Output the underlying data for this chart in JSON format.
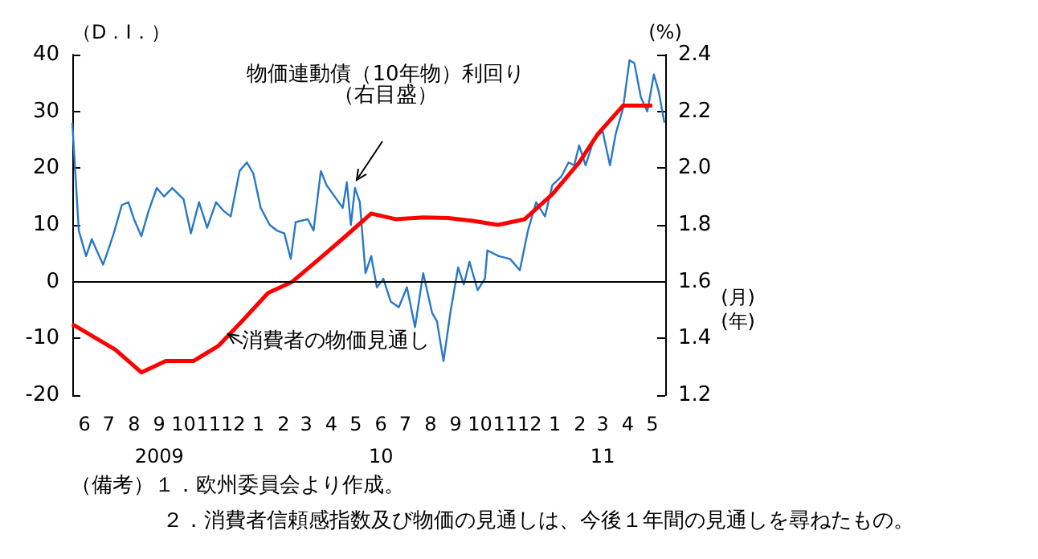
{
  "chart_data": {
    "type": "line",
    "ylabel": "（D．I．）",
    "y2label": "(%)",
    "xlabel": "(月)\n(年)",
    "xlim": [
      "2009-06-01",
      "2011-06-01"
    ],
    "xticks": [
      {
        "value": "2009-06-16",
        "label": "6"
      },
      {
        "value": "2009-07-16",
        "label": "7"
      },
      {
        "value": "2009-08-16",
        "label": "8"
      },
      {
        "value": "2009-09-16",
        "label": "9\n2009"
      },
      {
        "value": "2009-10-16",
        "label": "10"
      },
      {
        "value": "2009-11-16",
        "label": "11"
      },
      {
        "value": "2009-12-16",
        "label": "12"
      },
      {
        "value": "2010-01-16",
        "label": "1"
      },
      {
        "value": "2010-02-16",
        "label": "2"
      },
      {
        "value": "2010-03-16",
        "label": "3"
      },
      {
        "value": "2010-04-16",
        "label": "4"
      },
      {
        "value": "2010-05-16",
        "label": "5"
      },
      {
        "value": "2010-06-16",
        "label": "6\n10"
      },
      {
        "value": "2010-07-16",
        "label": "7"
      },
      {
        "value": "2010-08-16",
        "label": "8"
      },
      {
        "value": "2010-09-16",
        "label": "9"
      },
      {
        "value": "2010-10-16",
        "label": "10"
      },
      {
        "value": "2010-11-16",
        "label": "11"
      },
      {
        "value": "2010-12-16",
        "label": "12"
      },
      {
        "value": "2011-01-16",
        "label": "1"
      },
      {
        "value": "2011-02-16",
        "label": "2"
      },
      {
        "value": "2011-03-16",
        "label": "3\n11"
      },
      {
        "value": "2011-04-16",
        "label": "4"
      },
      {
        "value": "2011-05-16",
        "label": "5"
      }
    ],
    "ylim": [
      -20,
      40
    ],
    "yticks": [
      -20,
      -10,
      0,
      10,
      20,
      30,
      40
    ],
    "y2lim": [
      1.2,
      2.4
    ],
    "y2ticks": [
      1.2,
      1.4,
      1.6,
      1.8,
      {
        "value": 2,
        "label": "2.0"
      },
      2.2,
      2.4
    ],
    "grid": false,
    "legend": false,
    "marker": "none",
    "line_style": "solid",
    "ref_lines": [
      {
        "axis": "y",
        "value": 0,
        "color": "#000000"
      }
    ],
    "series": [
      {
        "name": "物価連動債（10年物）利回り（右目盛）",
        "axis": "y2",
        "color": "#2878c8",
        "x": [
          "2009-06-01",
          "2009-06-09",
          "2009-06-18",
          "2009-06-25",
          "2009-07-01",
          "2009-07-09",
          "2009-07-15",
          "2009-07-22",
          "2009-08-01",
          "2009-08-09",
          "2009-08-16",
          "2009-08-25",
          "2009-09-03",
          "2009-09-13",
          "2009-09-22",
          "2009-10-02",
          "2009-10-16",
          "2009-10-25",
          "2009-11-04",
          "2009-11-14",
          "2009-11-25",
          "2009-12-04",
          "2009-12-13",
          "2009-12-24",
          "2010-01-02",
          "2010-01-10",
          "2010-01-19",
          "2010-01-30",
          "2010-02-08",
          "2010-02-17",
          "2010-02-25",
          "2010-03-03",
          "2010-03-18",
          "2010-03-25",
          "2010-04-03",
          "2010-04-10",
          "2010-04-20",
          "2010-04-30",
          "2010-05-05",
          "2010-05-10",
          "2010-05-15",
          "2010-05-21",
          "2010-05-28",
          "2010-06-04",
          "2010-06-11",
          "2010-06-19",
          "2010-06-28",
          "2010-07-08",
          "2010-07-18",
          "2010-07-28",
          "2010-08-07",
          "2010-08-18",
          "2010-08-24",
          "2010-09-01",
          "2010-09-10",
          "2010-09-19",
          "2010-09-26",
          "2010-10-03",
          "2010-10-13",
          "2010-10-22",
          "2010-10-25",
          "2010-11-08",
          "2010-11-22",
          "2010-12-04",
          "2010-12-14",
          "2010-12-24",
          "2011-01-04",
          "2011-01-13",
          "2011-01-24",
          "2011-02-02",
          "2011-02-09",
          "2011-02-15",
          "2011-02-23",
          "2011-03-05",
          "2011-03-16",
          "2011-03-25",
          "2011-04-01",
          "2011-04-10",
          "2011-04-18",
          "2011-04-24",
          "2011-05-02",
          "2011-05-10",
          "2011-05-18",
          "2011-05-24",
          "2011-05-31"
        ],
        "values": [
          2.16,
          1.78,
          1.69,
          1.75,
          1.71,
          1.66,
          1.71,
          1.77,
          1.87,
          1.88,
          1.82,
          1.76,
          1.85,
          1.93,
          1.9,
          1.93,
          1.89,
          1.77,
          1.88,
          1.79,
          1.88,
          1.85,
          1.83,
          1.99,
          2.02,
          1.98,
          1.86,
          1.8,
          1.78,
          1.77,
          1.68,
          1.81,
          1.82,
          1.78,
          1.99,
          1.94,
          1.9,
          1.86,
          1.95,
          1.8,
          1.93,
          1.88,
          1.63,
          1.69,
          1.58,
          1.61,
          1.53,
          1.51,
          1.58,
          1.44,
          1.63,
          1.49,
          1.46,
          1.32,
          1.5,
          1.65,
          1.59,
          1.67,
          1.57,
          1.61,
          1.71,
          1.69,
          1.68,
          1.64,
          1.78,
          1.88,
          1.83,
          1.94,
          1.97,
          2.02,
          2.01,
          2.08,
          2.01,
          2.1,
          2.13,
          2.01,
          2.12,
          2.21,
          2.38,
          2.37,
          2.25,
          2.2,
          2.33,
          2.27,
          2.16
        ]
      },
      {
        "name": "消費者の物価見通し",
        "axis": "y",
        "color": "#ff0000",
        "x": [
          "2009-06-01",
          "2009-07-24",
          "2009-08-25",
          "2009-09-24",
          "2009-10-28",
          "2009-11-28",
          "2009-12-28",
          "2010-01-28",
          "2010-02-27",
          "2010-04-01",
          "2010-05-01",
          "2010-06-04",
          "2010-07-04",
          "2010-08-07",
          "2010-09-07",
          "2010-10-07",
          "2010-11-07",
          "2010-12-10",
          "2011-01-13",
          "2011-02-15",
          "2011-03-10",
          "2011-04-10",
          "2011-05-16"
        ],
        "values": [
          -7.5,
          -12,
          -16,
          -14,
          -14,
          -11.3,
          -6.8,
          -2,
          0,
          4,
          7.7,
          12,
          11,
          11.3,
          11.2,
          10.7,
          10,
          11,
          15.4,
          21,
          26,
          31,
          31
        ]
      }
    ],
    "annotations": [
      "（備考）１．欧州委員会より作成。",
      "２．消費者信頼感指数及び物価の見通しは、今後１年間の見通しを尋ねたもの。"
    ]
  }
}
